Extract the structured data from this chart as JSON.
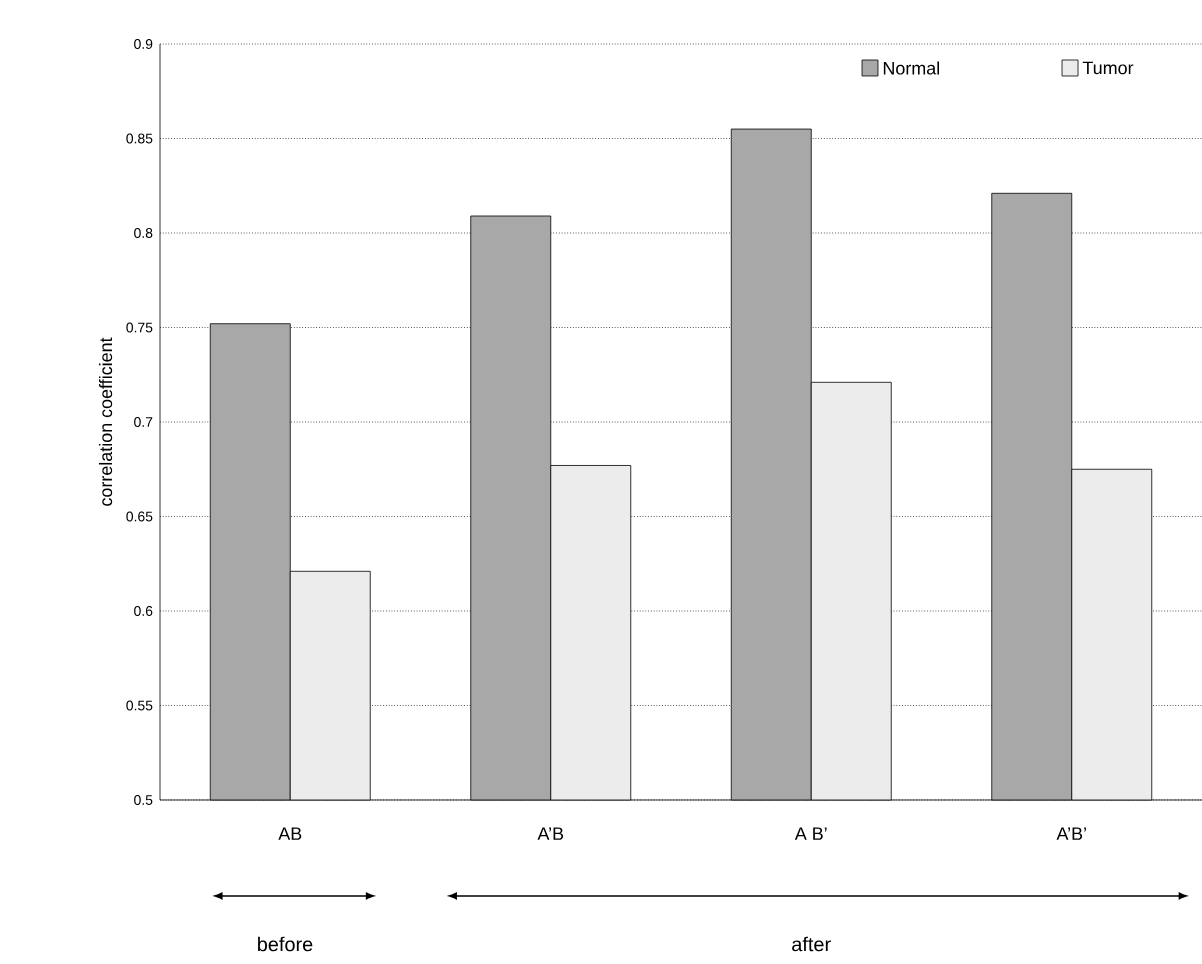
{
  "chart_data": {
    "type": "bar",
    "ylabel": "correlation coefficient",
    "categories": [
      "AB",
      "A’B",
      "A B’",
      "A’B’"
    ],
    "series": [
      {
        "name": "Normal",
        "color": "#a8a8a8",
        "values": [
          0.752,
          0.809,
          0.855,
          0.821
        ]
      },
      {
        "name": "Tumor",
        "color": "#ececec",
        "values": [
          0.621,
          0.677,
          0.721,
          0.675
        ]
      }
    ],
    "ylim": [
      0.5,
      0.9
    ],
    "yticks": [
      0.5,
      0.55,
      0.6,
      0.65,
      0.7,
      0.75,
      0.8,
      0.85,
      0.9
    ],
    "grid": "y",
    "legend": "top right",
    "line_style": "dotted",
    "annotations": [
      "before",
      "after"
    ]
  }
}
